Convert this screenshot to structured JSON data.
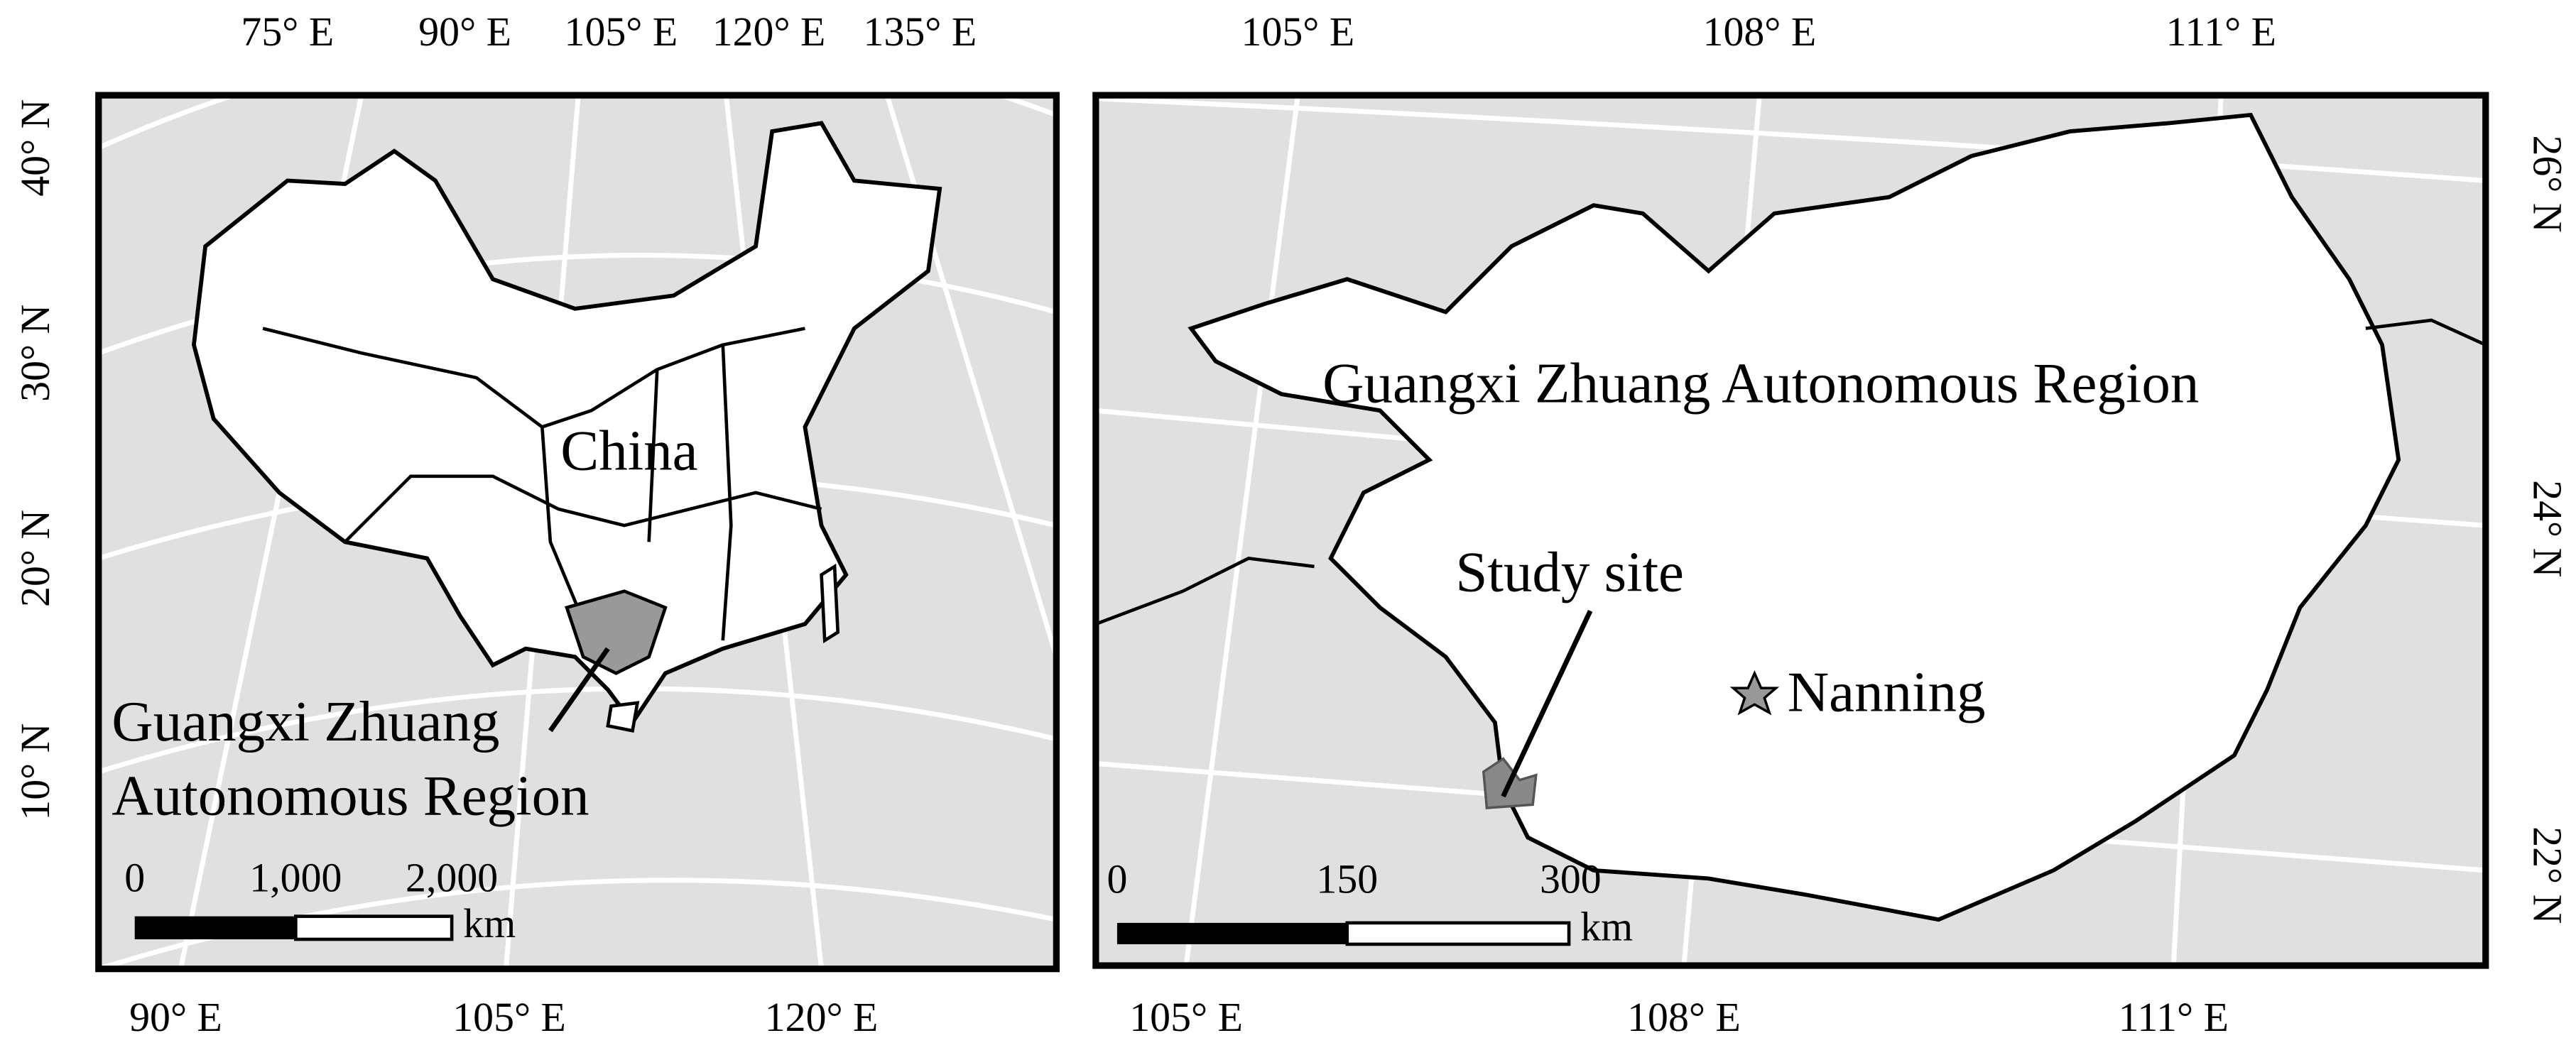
{
  "left_map": {
    "top_ticks": [
      "75° E",
      "90° E",
      "105° E",
      "120° E",
      "135° E"
    ],
    "left_ticks": [
      "40° N",
      "30° N",
      "20° N",
      "10° N"
    ],
    "bottom_ticks": [
      "90° E",
      "105° E",
      "120° E"
    ],
    "labels": {
      "country": "China",
      "region_line1": "Guangxi Zhuang",
      "region_line2": "Autonomous Region"
    },
    "scale_bar": {
      "ticks": [
        "0",
        "1,000",
        "2,000"
      ],
      "unit": "km"
    }
  },
  "right_map": {
    "top_ticks": [
      "105° E",
      "108° E",
      "111° E"
    ],
    "right_ticks": [
      "26° N",
      "24° N",
      "22° N"
    ],
    "bottom_ticks": [
      "105° E",
      "108° E",
      "111° E"
    ],
    "labels": {
      "region": "Guangxi Zhuang Autonomous Region",
      "study_site": "Study site",
      "city": "Nanning"
    },
    "scale_bar": {
      "ticks": [
        "0",
        "150",
        "300"
      ],
      "unit": "km"
    }
  }
}
